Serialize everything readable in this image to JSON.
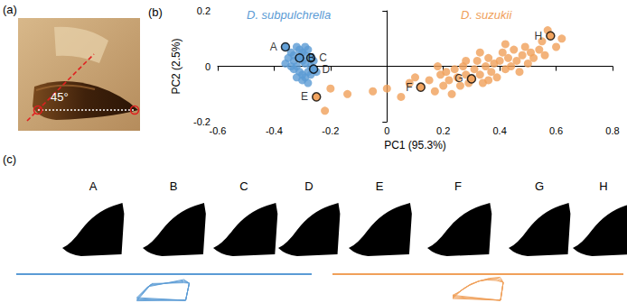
{
  "chart_data": {
    "type": "scatter",
    "title": "(b)",
    "xlabel": "PC1 (95.3%)",
    "ylabel": "PC2 (2.5%)",
    "xlim": [
      -0.6,
      0.8
    ],
    "xticks": [
      -0.6,
      -0.4,
      -0.2,
      0,
      0.2,
      0.4,
      0.6,
      0.8
    ],
    "ylim": [
      -0.2,
      0.2
    ],
    "yticks": [
      -0.2,
      0,
      0.2
    ],
    "grid": false,
    "series": [
      {
        "name": "D. subpulchrella",
        "color": "#5b9bd5",
        "values": [
          [
            -0.36,
            0.07
          ],
          [
            -0.31,
            0.03
          ],
          [
            -0.27,
            0.03
          ],
          [
            -0.26,
            -0.01
          ],
          [
            -0.34,
            0.05
          ],
          [
            -0.33,
            0.02
          ],
          [
            -0.32,
            0.0
          ],
          [
            -0.3,
            0.05
          ],
          [
            -0.29,
            0.01
          ],
          [
            -0.28,
            -0.02
          ],
          [
            -0.3,
            -0.03
          ],
          [
            -0.33,
            -0.01
          ],
          [
            -0.35,
            0.03
          ],
          [
            -0.31,
            0.06
          ],
          [
            -0.29,
            0.04
          ],
          [
            -0.27,
            0.0
          ],
          [
            -0.28,
            0.06
          ],
          [
            -0.32,
            -0.04
          ],
          [
            -0.3,
            -0.05
          ],
          [
            -0.26,
            0.02
          ],
          [
            -0.34,
            0.0
          ],
          [
            -0.31,
            -0.02
          ],
          [
            -0.29,
            -0.04
          ],
          [
            -0.27,
            -0.03
          ],
          [
            -0.33,
            0.04
          ],
          [
            -0.3,
            0.02
          ],
          [
            -0.28,
            -0.06
          ],
          [
            -0.32,
            0.07
          ],
          [
            -0.36,
            0.01
          ],
          [
            -0.25,
            -0.02
          ],
          [
            -0.29,
            0.07
          ]
        ],
        "labels": [
          "A",
          "B",
          "C",
          "D",
          null,
          null,
          null,
          null,
          null,
          null,
          null,
          null,
          null,
          null,
          null,
          null,
          null,
          null,
          null,
          null,
          null,
          null,
          null,
          null,
          null,
          null,
          null,
          null,
          null,
          null,
          null
        ]
      },
      {
        "name": "D. suzukii",
        "color": "#f0a05a",
        "values": [
          [
            -0.25,
            -0.11
          ],
          [
            0.12,
            -0.075
          ],
          [
            0.3,
            -0.045
          ],
          [
            0.58,
            0.11
          ],
          [
            -0.22,
            -0.16
          ],
          [
            -0.2,
            -0.08
          ],
          [
            -0.14,
            -0.1
          ],
          [
            -0.05,
            -0.09
          ],
          [
            0.0,
            -0.08
          ],
          [
            0.05,
            -0.11
          ],
          [
            0.08,
            -0.06
          ],
          [
            0.15,
            -0.05
          ],
          [
            0.17,
            -0.09
          ],
          [
            0.19,
            -0.03
          ],
          [
            0.2,
            -0.07
          ],
          [
            0.21,
            -0.02
          ],
          [
            0.22,
            -0.05
          ],
          [
            0.23,
            -0.1
          ],
          [
            0.24,
            -0.01
          ],
          [
            0.25,
            -0.04
          ],
          [
            0.26,
            -0.07
          ],
          [
            0.27,
            0.0
          ],
          [
            0.28,
            -0.03
          ],
          [
            0.29,
            -0.06
          ],
          [
            0.31,
            -0.01
          ],
          [
            0.32,
            0.02
          ],
          [
            0.33,
            -0.03
          ],
          [
            0.34,
            -0.06
          ],
          [
            0.35,
            0.0
          ],
          [
            0.36,
            0.03
          ],
          [
            0.37,
            -0.02
          ],
          [
            0.38,
            0.01
          ],
          [
            0.39,
            -0.04
          ],
          [
            0.4,
            0.02
          ],
          [
            0.41,
            0.05
          ],
          [
            0.42,
            -0.01
          ],
          [
            0.43,
            0.03
          ],
          [
            0.44,
            0.0
          ],
          [
            0.45,
            0.06
          ],
          [
            0.46,
            0.02
          ],
          [
            0.47,
            -0.02
          ],
          [
            0.48,
            0.04
          ],
          [
            0.49,
            0.07
          ],
          [
            0.5,
            0.01
          ],
          [
            0.51,
            0.05
          ],
          [
            0.52,
            0.03
          ],
          [
            0.54,
            0.06
          ],
          [
            0.55,
            0.09
          ],
          [
            0.56,
            0.04
          ],
          [
            0.57,
            0.13
          ],
          [
            0.6,
            0.07
          ],
          [
            0.62,
            0.1
          ],
          [
            0.33,
            0.05
          ],
          [
            0.28,
            0.02
          ],
          [
            0.36,
            -0.05
          ],
          [
            0.18,
            0.0
          ],
          [
            0.1,
            -0.04
          ],
          [
            0.42,
            0.08
          ]
        ],
        "labels": [
          "E",
          "F",
          "G",
          "H",
          null,
          null,
          null,
          null,
          null,
          null,
          null,
          null,
          null,
          null,
          null,
          null,
          null,
          null,
          null,
          null,
          null,
          null,
          null,
          null,
          null,
          null,
          null,
          null,
          null,
          null,
          null,
          null,
          null,
          null,
          null,
          null,
          null,
          null,
          null,
          null,
          null,
          null,
          null,
          null,
          null,
          null,
          null,
          null,
          null,
          null,
          null,
          null,
          null,
          null,
          null,
          null,
          null,
          null
        ]
      }
    ]
  },
  "panel_a": {
    "label": "(a)",
    "angle": "45°"
  },
  "panel_c": {
    "label": "(c)",
    "groups": [
      {
        "labels": [
          "A",
          "B",
          "C",
          "D"
        ],
        "color": "#5b9bd5"
      },
      {
        "labels": [
          "E",
          "F",
          "G",
          "H"
        ],
        "color": "#f0a05a"
      }
    ]
  }
}
